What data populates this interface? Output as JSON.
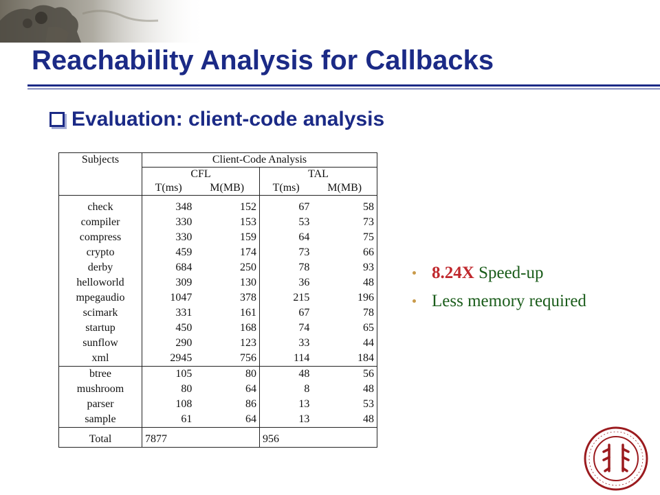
{
  "slide": {
    "title": "Reachability Analysis for Callbacks",
    "subtitle": "Evaluation: client-code analysis"
  },
  "table": {
    "header": {
      "subjects": "Subjects",
      "group": "Client-Code Analysis",
      "cfl": "CFL",
      "tal": "TAL",
      "t_ms": "T(ms)",
      "m_mb": "M(MB)"
    },
    "group1": [
      {
        "subject": "check",
        "cfl_t": "348",
        "cfl_m": "152",
        "tal_t": "67",
        "tal_m": "58"
      },
      {
        "subject": "compiler",
        "cfl_t": "330",
        "cfl_m": "153",
        "tal_t": "53",
        "tal_m": "73"
      },
      {
        "subject": "compress",
        "cfl_t": "330",
        "cfl_m": "159",
        "tal_t": "64",
        "tal_m": "75"
      },
      {
        "subject": "crypto",
        "cfl_t": "459",
        "cfl_m": "174",
        "tal_t": "73",
        "tal_m": "66"
      },
      {
        "subject": "derby",
        "cfl_t": "684",
        "cfl_m": "250",
        "tal_t": "78",
        "tal_m": "93"
      },
      {
        "subject": "helloworld",
        "cfl_t": "309",
        "cfl_m": "130",
        "tal_t": "36",
        "tal_m": "48"
      },
      {
        "subject": "mpegaudio",
        "cfl_t": "1047",
        "cfl_m": "378",
        "tal_t": "215",
        "tal_m": "196"
      },
      {
        "subject": "scimark",
        "cfl_t": "331",
        "cfl_m": "161",
        "tal_t": "67",
        "tal_m": "78"
      },
      {
        "subject": "startup",
        "cfl_t": "450",
        "cfl_m": "168",
        "tal_t": "74",
        "tal_m": "65"
      },
      {
        "subject": "sunflow",
        "cfl_t": "290",
        "cfl_m": "123",
        "tal_t": "33",
        "tal_m": "44"
      },
      {
        "subject": "xml",
        "cfl_t": "2945",
        "cfl_m": "756",
        "tal_t": "114",
        "tal_m": "184"
      }
    ],
    "group2": [
      {
        "subject": "btree",
        "cfl_t": "105",
        "cfl_m": "80",
        "tal_t": "48",
        "tal_m": "56"
      },
      {
        "subject": "mushroom",
        "cfl_t": "80",
        "cfl_m": "64",
        "tal_t": "8",
        "tal_m": "48"
      },
      {
        "subject": "parser",
        "cfl_t": "108",
        "cfl_m": "86",
        "tal_t": "13",
        "tal_m": "53"
      },
      {
        "subject": "sample",
        "cfl_t": "61",
        "cfl_m": "64",
        "tal_t": "13",
        "tal_m": "48"
      }
    ],
    "total": {
      "subject": "Total",
      "cfl_t": "7877",
      "cfl_m": "",
      "tal_t": "956",
      "tal_m": ""
    }
  },
  "bullets": [
    {
      "emphasis": "8.24X",
      "text": " Speed-up"
    },
    {
      "emphasis": "",
      "text": "Less memory required"
    }
  ],
  "icons": {
    "title_bullet": "hollow-square-bullet-icon",
    "logo": "university-seal-icon",
    "header_image": "stone-lion-photo"
  },
  "colors": {
    "title": "#1b2a86",
    "bullet_text": "#1a5c1a",
    "emphasis": "#c0282d",
    "seal": "#9b1b1f"
  }
}
